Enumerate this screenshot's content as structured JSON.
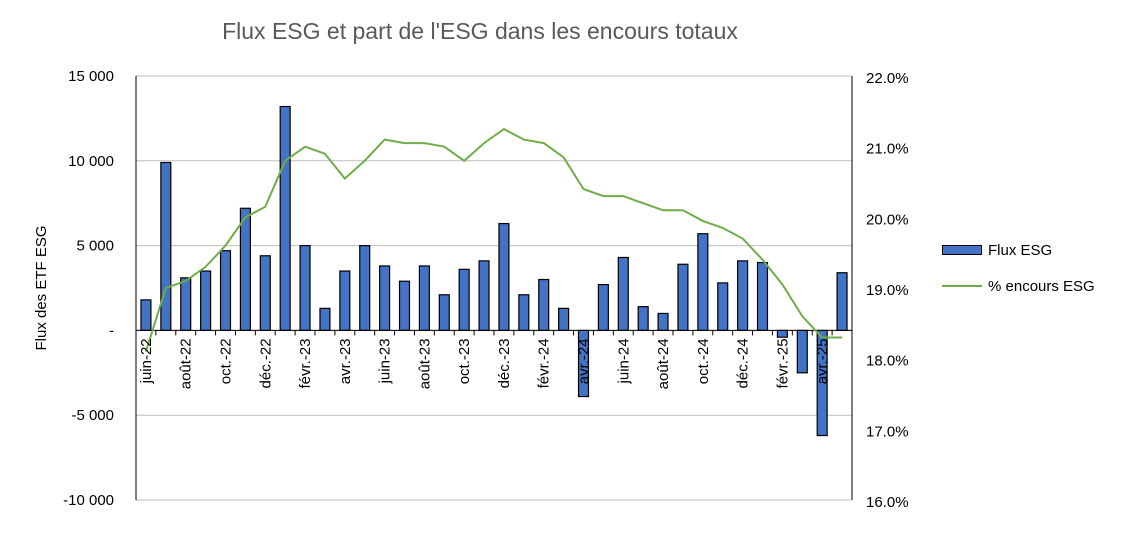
{
  "chart_data": {
    "type": "bar",
    "title": "Flux ESG et part de l'ESG dans les encours totaux",
    "ylabel": "Flux des ETF ESG",
    "ylim": [
      -10000,
      15000
    ],
    "y_ticks": [
      "-10 000",
      "-5 000",
      "-",
      "5 000",
      "10 000",
      "15 000"
    ],
    "y2lim": [
      16.0,
      22.0
    ],
    "y2_ticks": [
      "16.0%",
      "17.0%",
      "18.0%",
      "19.0%",
      "20.0%",
      "21.0%",
      "22.0%"
    ],
    "x_tick_labels": [
      "juin-22",
      "août-22",
      "oct.-22",
      "déc.-22",
      "févr.-23",
      "avr.-23",
      "juin-23",
      "août-23",
      "oct.-23",
      "déc.-23",
      "févr.-24",
      "avr.-24",
      "juin-24",
      "août-24",
      "oct.-24",
      "déc.-24",
      "févr.-25",
      "avr.-25"
    ],
    "categories": [
      "juin-22",
      "juil.-22",
      "août-22",
      "sept.-22",
      "oct.-22",
      "nov.-22",
      "déc.-22",
      "janv.-23",
      "févr.-23",
      "mars-23",
      "avr.-23",
      "mai-23",
      "juin-23",
      "juil.-23",
      "août-23",
      "sept.-23",
      "oct.-23",
      "nov.-23",
      "déc.-23",
      "janv.-24",
      "févr.-24",
      "mars-24",
      "avr.-24",
      "mai-24",
      "juin-24",
      "juil.-24",
      "août-24",
      "sept.-24",
      "oct.-24",
      "nov.-24",
      "déc.-24",
      "janv.-25",
      "févr.-25",
      "mars-25",
      "avr.-25",
      "mai-25"
    ],
    "series": [
      {
        "name": "Flux ESG",
        "type": "bar",
        "axis": "left",
        "color": "#4472C4",
        "values": [
          1800,
          9900,
          3100,
          3500,
          4700,
          7200,
          4400,
          13200,
          5000,
          1300,
          3500,
          5000,
          3800,
          2900,
          3800,
          2100,
          3600,
          4100,
          6300,
          2100,
          3000,
          1300,
          -3900,
          2700,
          4300,
          1400,
          1000,
          3900,
          5700,
          2800,
          4100,
          4000,
          -400,
          -2500,
          -6200,
          3400
        ]
      },
      {
        "name": "% encours ESG",
        "type": "line",
        "axis": "right",
        "color": "#70AD47",
        "values": [
          18.1,
          19.0,
          19.1,
          19.3,
          19.6,
          20.0,
          20.15,
          20.8,
          21.0,
          20.9,
          20.55,
          20.8,
          21.1,
          21.05,
          21.05,
          21.0,
          20.8,
          21.05,
          21.25,
          21.1,
          21.05,
          20.85,
          20.4,
          20.3,
          20.3,
          20.2,
          20.1,
          20.1,
          19.95,
          19.85,
          19.7,
          19.4,
          19.05,
          18.6,
          18.3,
          18.3
        ]
      }
    ],
    "grid": true,
    "legend_position": "right"
  }
}
